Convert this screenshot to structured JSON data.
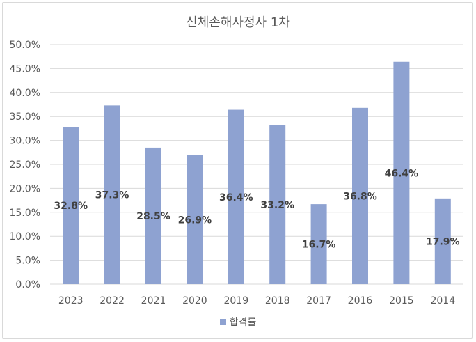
{
  "chart_data": {
    "type": "bar",
    "title": "신체손해사정사 1차",
    "categories": [
      "2023",
      "2022",
      "2021",
      "2020",
      "2019",
      "2018",
      "2017",
      "2016",
      "2015",
      "2014"
    ],
    "series": [
      {
        "name": "합격률",
        "values": [
          32.8,
          37.3,
          28.5,
          26.9,
          36.4,
          33.2,
          16.7,
          36.8,
          46.4,
          17.9
        ]
      }
    ],
    "data_labels": [
      "32.8%",
      "37.3%",
      "28.5%",
      "26.9%",
      "36.4%",
      "33.2%",
      "16.7%",
      "36.8%",
      "46.4%",
      "17.9%"
    ],
    "yticks": [
      "0.0%",
      "5.0%",
      "10.0%",
      "15.0%",
      "20.0%",
      "25.0%",
      "30.0%",
      "35.0%",
      "40.0%",
      "45.0%",
      "50.0%"
    ],
    "ylim": [
      0,
      50
    ],
    "grid": true,
    "legend_position": "bottom",
    "bar_color": "#8ea2d1",
    "gridline_color": "#d9d9d9"
  }
}
